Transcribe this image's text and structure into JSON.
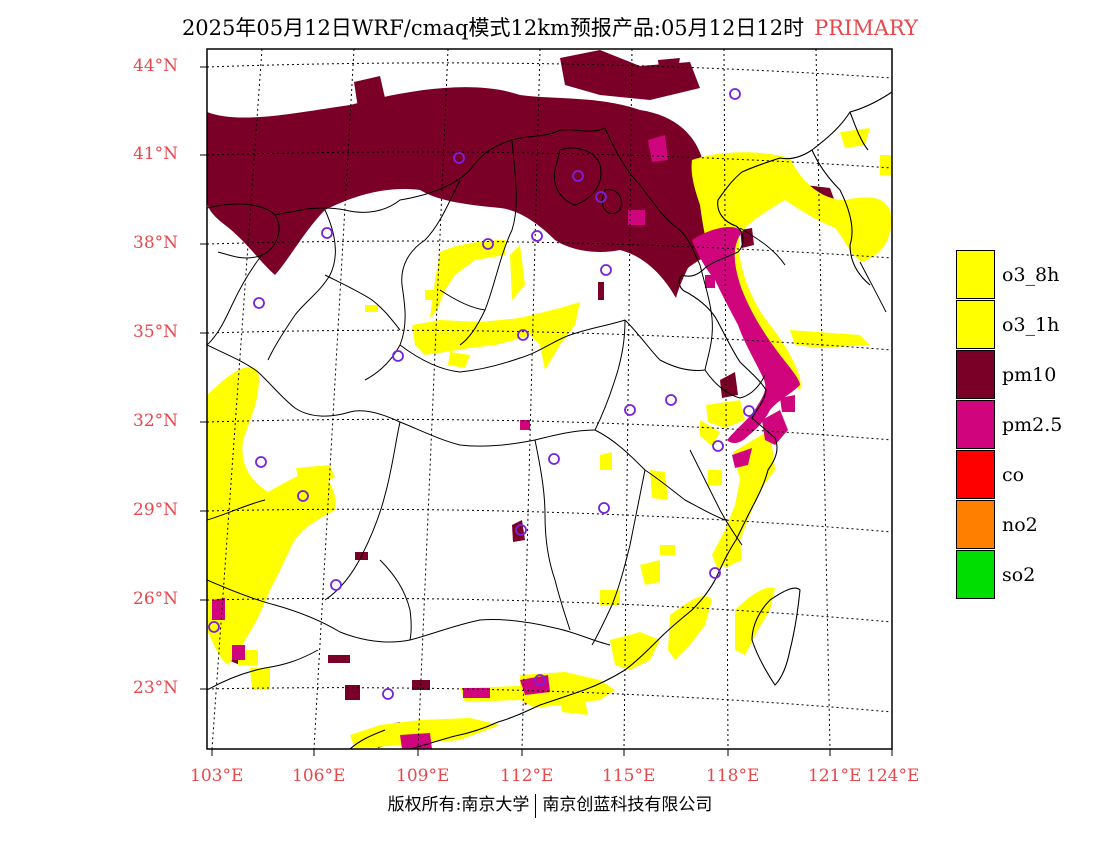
{
  "title": {
    "main": "2025年05月12日WRF/cmaq模式12km预报产品:05月12日12时",
    "pollutant": "PRIMARY",
    "accent_color": "#e8474c"
  },
  "axes": {
    "lat_labels": [
      "44°N",
      "41°N",
      "38°N",
      "35°N",
      "32°N",
      "29°N",
      "26°N",
      "23°N"
    ],
    "lon_labels": [
      "103°E",
      "106°E",
      "109°E",
      "112°E",
      "115°E",
      "118°E",
      "121°E",
      "124°E"
    ]
  },
  "legend": {
    "items": [
      {
        "label": "o3_8h",
        "color": "#ffff00"
      },
      {
        "label": "o3_1h",
        "color": "#ffff00"
      },
      {
        "label": "pm10",
        "color": "#7b0028"
      },
      {
        "label": "pm2.5",
        "color": "#d0057d"
      },
      {
        "label": "co",
        "color": "#ff0000"
      },
      {
        "label": "no2",
        "color": "#ff7f00"
      },
      {
        "label": "so2",
        "color": "#00dd00"
      }
    ]
  },
  "footer": {
    "left": "版权所有:南京大学",
    "right": "南京创蓝科技有限公司"
  }
}
